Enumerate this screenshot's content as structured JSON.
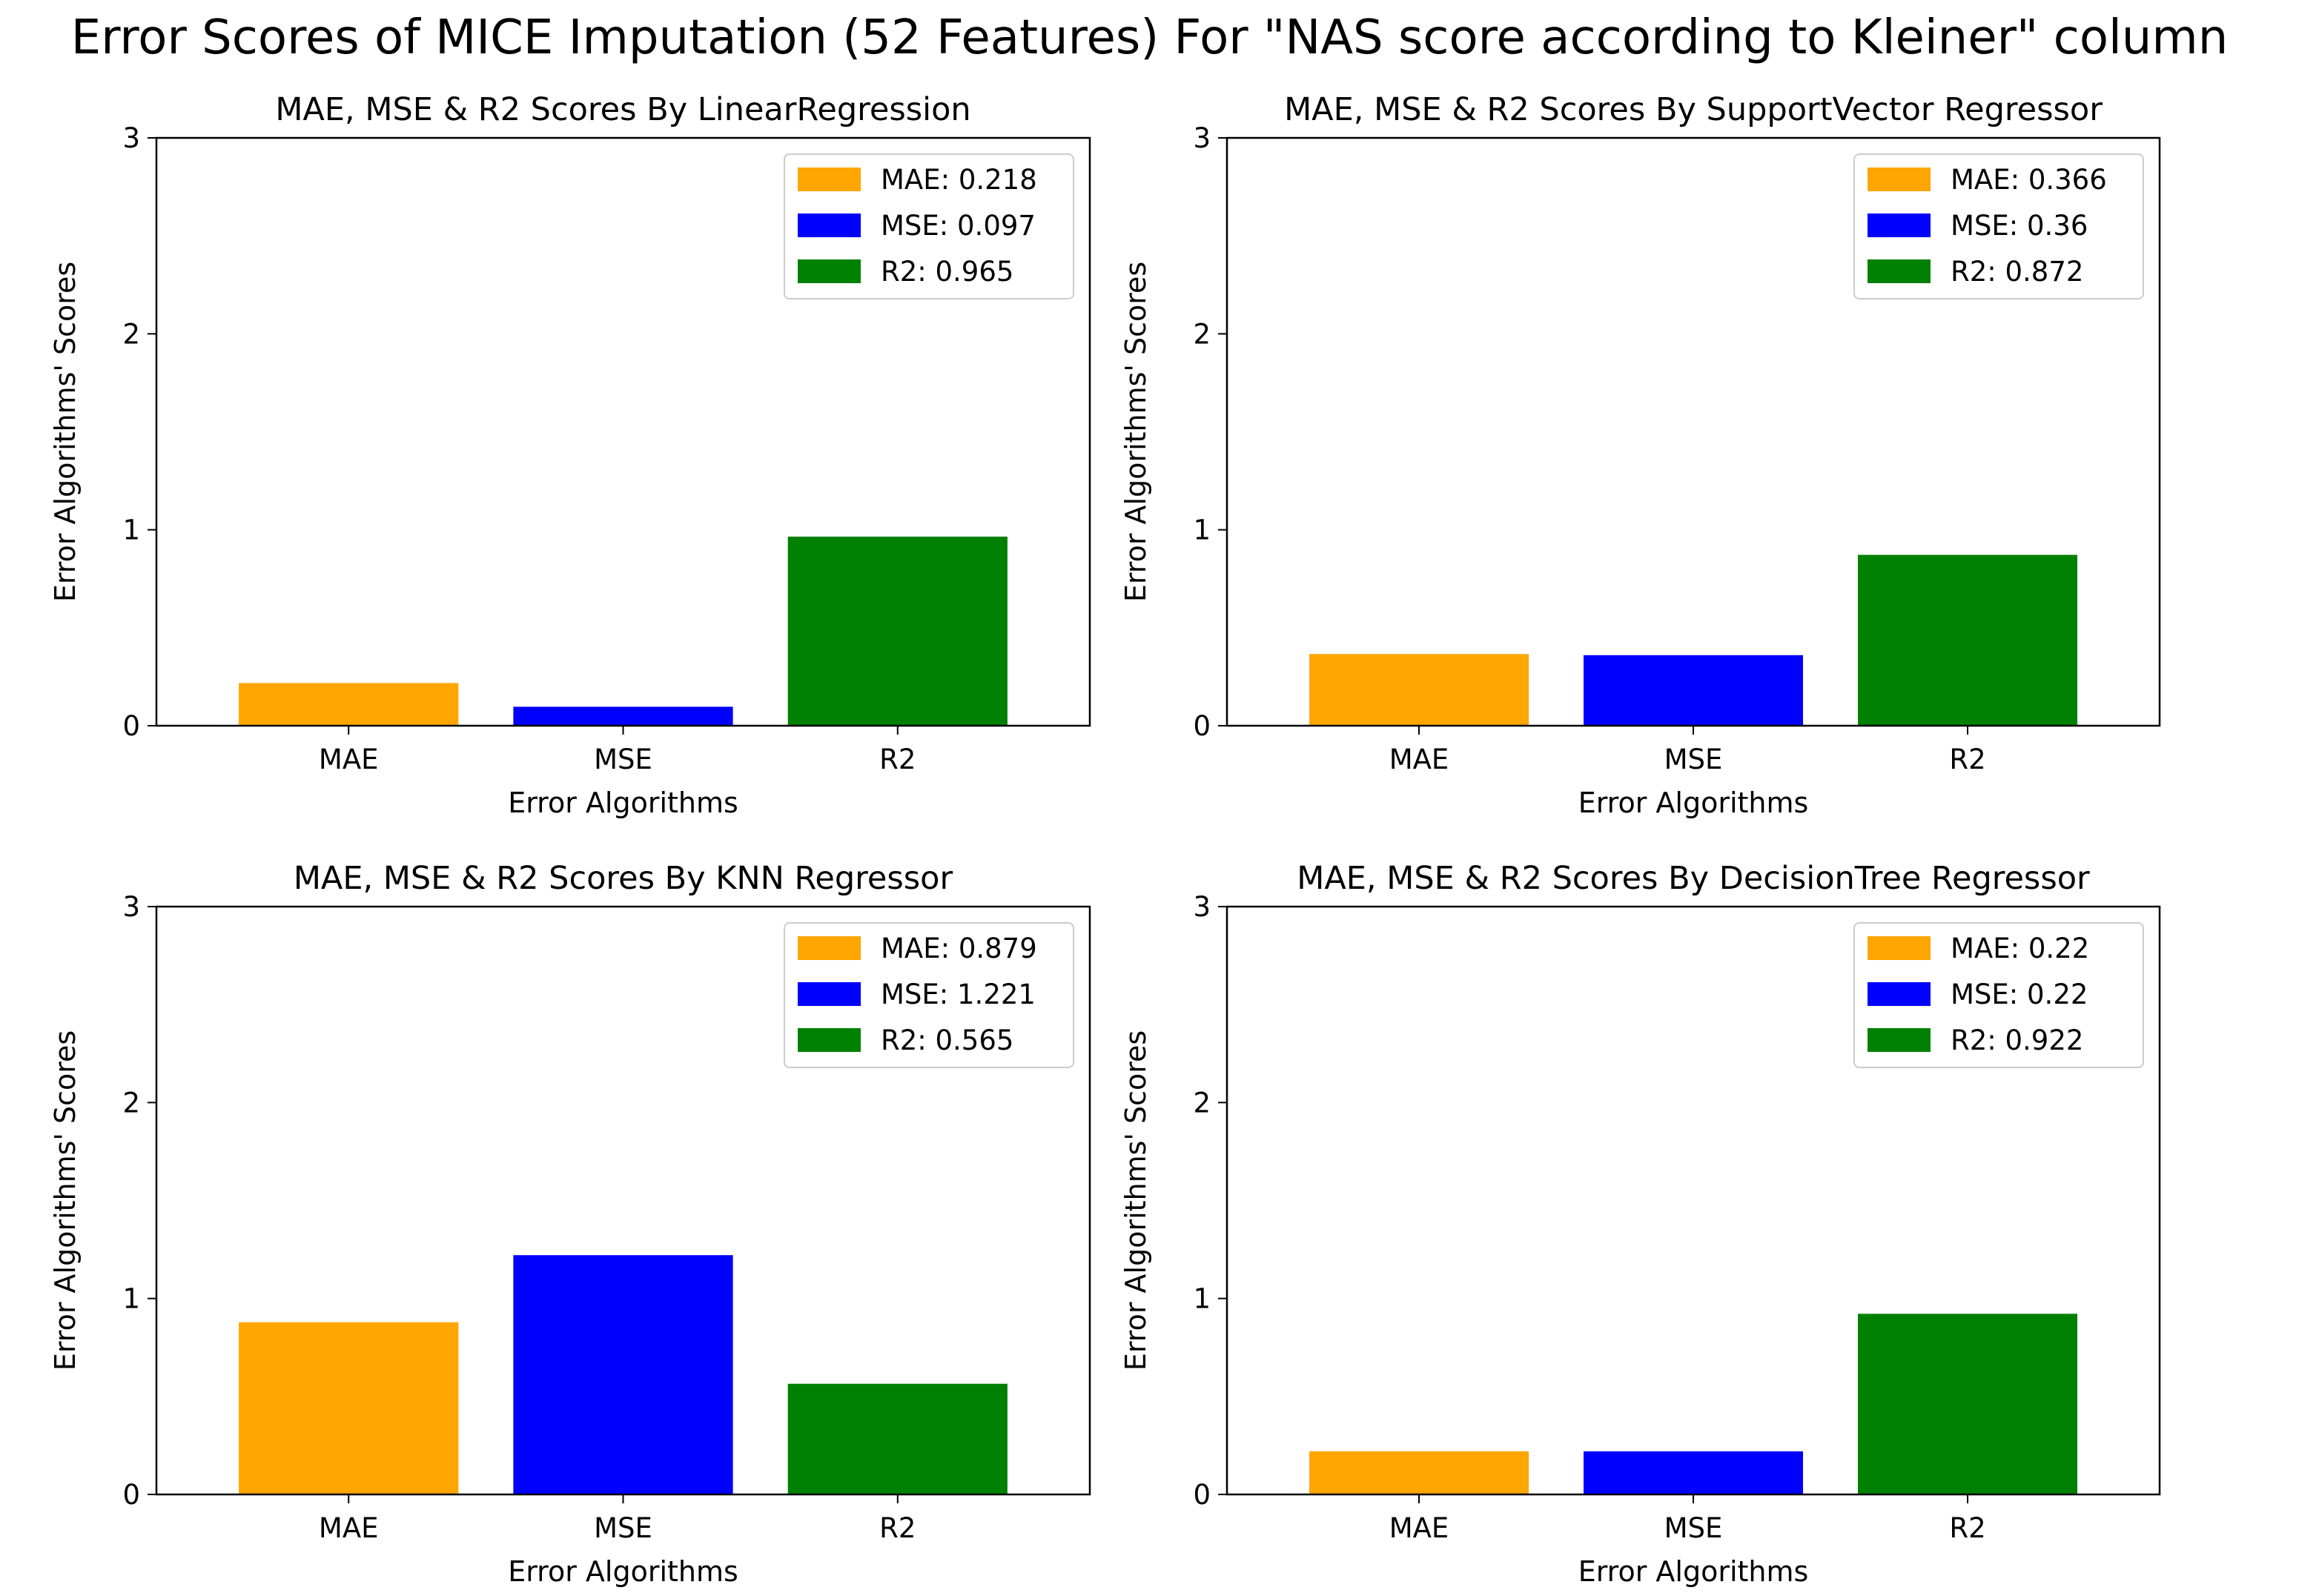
{
  "figure": {
    "title": "Error Scores of MICE Imputation (52 Features) For \"NAS score according to Kleiner\" column"
  },
  "chart_data": [
    {
      "type": "bar",
      "title": "MAE, MSE & R2 Scores By LinearRegression",
      "xlabel": "Error Algorithms",
      "ylabel": "Error Algorithms' Scores",
      "categories": [
        "MAE",
        "MSE",
        "R2"
      ],
      "values": [
        0.218,
        0.097,
        0.965
      ],
      "colors": [
        "#FFA500",
        "#0000FF",
        "#008000"
      ],
      "ylim": [
        0,
        3
      ],
      "yticks": [
        "0",
        "1",
        "2",
        "3"
      ],
      "legend_position": "upper right",
      "legend": [
        "MAE: 0.218",
        "MSE: 0.097",
        "R2: 0.965"
      ]
    },
    {
      "type": "bar",
      "title": "MAE, MSE & R2 Scores By SupportVector Regressor",
      "xlabel": "Error Algorithms",
      "ylabel": "Error Algorithms' Scores",
      "categories": [
        "MAE",
        "MSE",
        "R2"
      ],
      "values": [
        0.366,
        0.36,
        0.872
      ],
      "colors": [
        "#FFA500",
        "#0000FF",
        "#008000"
      ],
      "ylim": [
        0,
        3
      ],
      "yticks": [
        "0",
        "1",
        "2",
        "3"
      ],
      "legend_position": "upper right",
      "legend": [
        "MAE: 0.366",
        "MSE: 0.36",
        "R2: 0.872"
      ]
    },
    {
      "type": "bar",
      "title": "MAE, MSE & R2 Scores By KNN Regressor",
      "xlabel": "Error Algorithms",
      "ylabel": "Error Algorithms' Scores",
      "categories": [
        "MAE",
        "MSE",
        "R2"
      ],
      "values": [
        0.879,
        1.221,
        0.565
      ],
      "colors": [
        "#FFA500",
        "#0000FF",
        "#008000"
      ],
      "ylim": [
        0,
        3
      ],
      "yticks": [
        "0",
        "1",
        "2",
        "3"
      ],
      "legend_position": "upper right",
      "legend": [
        "MAE: 0.879",
        "MSE: 1.221",
        "R2: 0.565"
      ]
    },
    {
      "type": "bar",
      "title": "MAE, MSE & R2 Scores By DecisionTree Regressor",
      "xlabel": "Error Algorithms",
      "ylabel": "Error Algorithms' Scores",
      "categories": [
        "MAE",
        "MSE",
        "R2"
      ],
      "values": [
        0.22,
        0.22,
        0.922
      ],
      "colors": [
        "#FFA500",
        "#0000FF",
        "#008000"
      ],
      "ylim": [
        0,
        3
      ],
      "yticks": [
        "0",
        "1",
        "2",
        "3"
      ],
      "legend_position": "upper right",
      "legend": [
        "MAE: 0.22",
        "MSE: 0.22",
        "R2: 0.922"
      ]
    }
  ]
}
